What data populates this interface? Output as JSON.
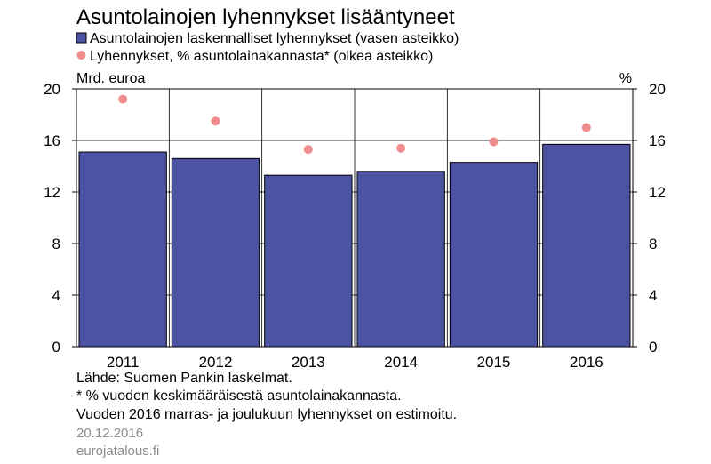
{
  "colors": {
    "bar": "#4d53a3",
    "bar_stroke": "#000000",
    "dot": "#f08c8c",
    "grid": "#000000",
    "meta_text": "#8c8c8c"
  },
  "chart_data": {
    "type": "bar",
    "title": "Asuntolainojen lyhennykset lisääntyneet",
    "categories": [
      "2011",
      "2012",
      "2013",
      "2014",
      "2015",
      "2016"
    ],
    "series": [
      {
        "name": "Asuntolainojen laskennalliset lyhennykset (vasen asteikko)",
        "type": "bar",
        "axis": "left",
        "values": [
          15.1,
          14.6,
          13.3,
          13.6,
          14.3,
          15.7
        ]
      },
      {
        "name": "Lyhennykset, % asuntolainakannasta* (oikea asteikko)",
        "type": "scatter",
        "axis": "right",
        "values": [
          19.2,
          17.5,
          15.3,
          15.4,
          15.9,
          17.0
        ]
      }
    ],
    "ylabel_left": "Mrd. euroa",
    "ylabel_right": "%",
    "ylim": [
      0,
      20
    ],
    "yticks": [
      0,
      4,
      8,
      12,
      16,
      20
    ],
    "grid": true,
    "legend_position": "top-left"
  },
  "notes": {
    "source": "Lähde: Suomen Pankin laskelmat.",
    "footnote": "* % vuoden keskimääräisestä asuntolainakannasta.",
    "estimate": "Vuoden 2016 marras- ja joulukuun lyhennykset on estimoitu."
  },
  "meta": {
    "date": "20.12.2016",
    "site": "eurojatalous.fi"
  }
}
